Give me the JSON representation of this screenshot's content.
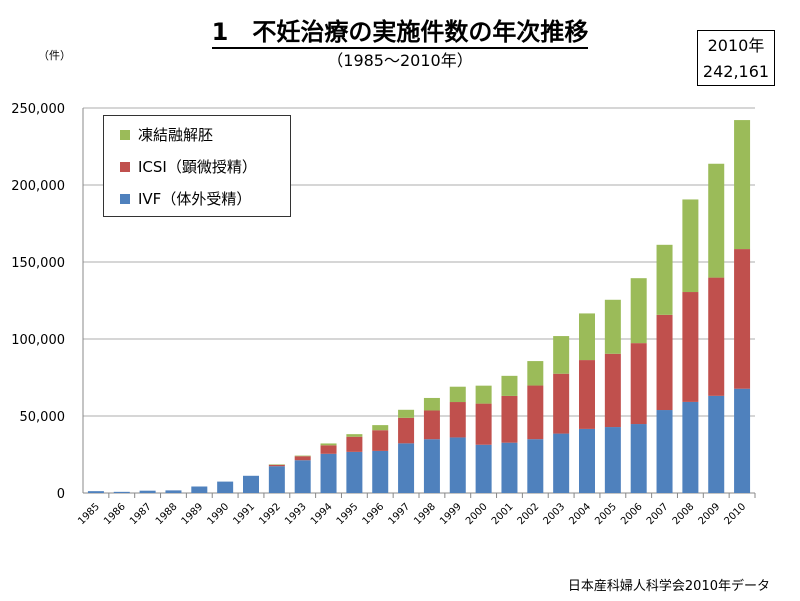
{
  "title": "1　不妊治療の実施件数の年次推移",
  "subtitle": "（1985～2010年）",
  "unit_label": "（件）",
  "callout": {
    "year": "2010年",
    "value": "242,161"
  },
  "source": "日本産科婦人科学会2010年データ",
  "chart_data": {
    "type": "bar",
    "stacked": true,
    "categories": [
      "1985",
      "1986",
      "1987",
      "1988",
      "1989",
      "1990",
      "1991",
      "1992",
      "1993",
      "1994",
      "1995",
      "1996",
      "1997",
      "1998",
      "1999",
      "2000",
      "2001",
      "2002",
      "2003",
      "2004",
      "2005",
      "2006",
      "2007",
      "2008",
      "2009",
      "2010"
    ],
    "series": [
      {
        "name": "IVF（体外受精）",
        "color": "#4f81bd",
        "values": [
          1195,
          752,
          1503,
          1702,
          4218,
          7405,
          11177,
          17404,
          21287,
          25457,
          26712,
          27338,
          32247,
          34929,
          36085,
          31334,
          32676,
          34953,
          38575,
          41619,
          42822,
          44778,
          53873,
          59148,
          63083,
          67714
        ]
      },
      {
        "name": "ICSI（顕微授精）",
        "color": "#c0504d",
        "values": [
          0,
          0,
          0,
          0,
          0,
          0,
          0,
          963,
          2600,
          5510,
          9820,
          13438,
          16573,
          18657,
          22984,
          26712,
          30369,
          34824,
          38871,
          44698,
          47579,
          52539,
          61813,
          71350,
          76790,
          90677
        ]
      },
      {
        "name": "凍結融解胚",
        "color": "#9bbb59",
        "values": [
          0,
          0,
          0,
          0,
          0,
          0,
          0,
          200,
          400,
          1208,
          1682,
          3302,
          5208,
          8132,
          9950,
          11653,
          13034,
          15887,
          24459,
          30287,
          35069,
          42171,
          45478,
          60115,
          73927,
          83770
        ]
      }
    ],
    "ylim": [
      0,
      250000
    ],
    "yticks": [
      "0",
      "50,000",
      "100,000",
      "150,000",
      "200,000",
      "250,000"
    ],
    "grid": true,
    "legend": "top-left"
  }
}
